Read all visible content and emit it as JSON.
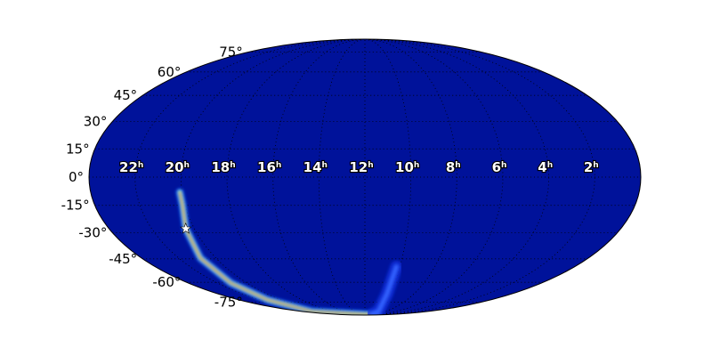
{
  "chart_data": {
    "type": "heatmap",
    "projection": "mollweide",
    "title": "",
    "background_color": "#00129a",
    "colormap": "jet",
    "grid": true,
    "grid_style": "dotted",
    "ra_tick_labels": [
      "22",
      "20",
      "18",
      "16",
      "14",
      "12",
      "10",
      "8",
      "6",
      "4",
      "2"
    ],
    "ra_tick_values_hours": [
      22,
      20,
      18,
      16,
      14,
      12,
      10,
      8,
      6,
      4,
      2
    ],
    "ra_unit": "h",
    "dec_tick_labels": [
      "75°",
      "60°",
      "45°",
      "30°",
      "15°",
      "0°",
      "-15°",
      "-30°",
      "-45°",
      "-60°",
      "-75°"
    ],
    "dec_tick_values": [
      75,
      60,
      45,
      30,
      15,
      0,
      -15,
      -30,
      -45,
      -60,
      -75
    ],
    "probability_regions": [
      {
        "points_ra_hours_dec_deg": [
          [
            20.1,
            -8
          ],
          [
            20.1,
            -14.7
          ],
          [
            20.4,
            -27.7
          ],
          [
            20.84,
            -44.6
          ],
          [
            21.1,
            -60.5
          ],
          [
            21.3,
            -73.1
          ],
          [
            22.2,
            -84.3
          ],
          [
            0,
            -89.5
          ]
        ],
        "peak_color": "#d01010"
      },
      {
        "points_ra_hours_dec_deg": [
          [
            10.2,
            -50
          ],
          [
            10.2,
            -68.2
          ],
          [
            9.45,
            -84
          ],
          [
            9,
            -88
          ]
        ],
        "peak_color": "#3060ff"
      }
    ],
    "marker": {
      "symbol": "star",
      "ra_hours": 20.4,
      "dec_deg": -27.7,
      "color": "#ffffff"
    }
  }
}
